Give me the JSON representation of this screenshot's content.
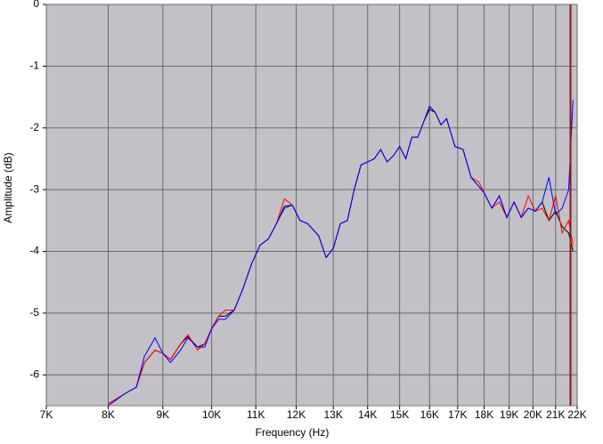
{
  "chart_data": {
    "type": "line",
    "x_label": "Frequency (Hz)",
    "y_label": "Amplitude (dB)",
    "log_x": true,
    "grid": true,
    "xlim": [
      7000,
      22000
    ],
    "xticks": [
      {
        "value": 7000,
        "label": "7K"
      },
      {
        "value": 8000,
        "label": "8K"
      },
      {
        "value": 9000,
        "label": "9K"
      },
      {
        "value": 10000,
        "label": "10K"
      },
      {
        "value": 11000,
        "label": "11K"
      },
      {
        "value": 12000,
        "label": "12K"
      },
      {
        "value": 13000,
        "label": "13K"
      },
      {
        "value": 14000,
        "label": "14K"
      },
      {
        "value": 15000,
        "label": "15K"
      },
      {
        "value": 16000,
        "label": "16K"
      },
      {
        "value": 17000,
        "label": "17K"
      },
      {
        "value": 18000,
        "label": "18K"
      },
      {
        "value": 19000,
        "label": "19K"
      },
      {
        "value": 20000,
        "label": "20K"
      },
      {
        "value": 21000,
        "label": "21K"
      },
      {
        "value": 22000,
        "label": "22K"
      }
    ],
    "ylim": [
      -6.5,
      0
    ],
    "yticks": [
      0,
      -1,
      -2,
      -3,
      -4,
      -5,
      -6
    ],
    "x": [
      8000,
      8300,
      8500,
      8650,
      8850,
      9000,
      9150,
      9350,
      9500,
      9700,
      9850,
      10000,
      10150,
      10300,
      10500,
      10700,
      10900,
      11100,
      11300,
      11500,
      11700,
      11900,
      12100,
      12300,
      12600,
      12800,
      13000,
      13200,
      13400,
      13600,
      13800,
      14000,
      14200,
      14400,
      14600,
      14800,
      15000,
      15200,
      15400,
      15600,
      15800,
      16000,
      16200,
      16400,
      16600,
      16900,
      17200,
      17500,
      17800,
      18000,
      18300,
      18600,
      18900,
      19200,
      19500,
      19800,
      20100,
      20400,
      20700,
      21000,
      21300,
      21600,
      21800
    ],
    "series": [
      {
        "color": "#000000",
        "values": [
          -6.47,
          -6.3,
          -6.2,
          -5.8,
          -5.6,
          -5.65,
          -5.75,
          -5.5,
          -5.38,
          -5.55,
          -5.5,
          -5.25,
          -5.05,
          -5.05,
          -4.95,
          -4.6,
          -4.2,
          -3.9,
          -3.8,
          -3.55,
          -3.27,
          -3.25,
          -3.5,
          -3.55,
          -3.75,
          -4.1,
          -3.95,
          -3.55,
          -3.5,
          -3.0,
          -2.6,
          -2.55,
          -2.5,
          -2.35,
          -2.55,
          -2.45,
          -2.3,
          -2.5,
          -2.15,
          -2.15,
          -1.9,
          -1.7,
          -1.75,
          -1.95,
          -1.85,
          -2.3,
          -2.35,
          -2.8,
          -2.95,
          -3.05,
          -3.3,
          -3.1,
          -3.45,
          -3.2,
          -3.45,
          -3.3,
          -3.35,
          -3.2,
          -3.5,
          -3.35,
          -3.6,
          -3.7,
          -4.0
        ]
      },
      {
        "color": "#ff0000",
        "values": [
          -6.47,
          -6.3,
          -6.2,
          -5.8,
          -5.6,
          -5.65,
          -5.75,
          -5.5,
          -5.35,
          -5.6,
          -5.5,
          -5.25,
          -5.05,
          -4.95,
          -4.95,
          -4.6,
          -4.2,
          -3.9,
          -3.8,
          -3.55,
          -3.15,
          -3.25,
          -3.5,
          -3.55,
          -3.75,
          -4.1,
          -3.95,
          -3.55,
          -3.5,
          -3.0,
          -2.6,
          -2.55,
          -2.5,
          -2.35,
          -2.55,
          -2.45,
          -2.3,
          -2.5,
          -2.15,
          -2.15,
          -1.9,
          -1.65,
          -1.75,
          -1.95,
          -1.85,
          -2.3,
          -2.35,
          -2.8,
          -2.88,
          -3.05,
          -3.3,
          -3.2,
          -3.45,
          -3.2,
          -3.45,
          -3.1,
          -3.35,
          -3.3,
          -3.5,
          -3.1,
          -3.7,
          -3.5,
          -3.9
        ]
      },
      {
        "color": "#0000ff",
        "values": [
          -6.5,
          -6.3,
          -6.2,
          -5.7,
          -5.4,
          -5.65,
          -5.8,
          -5.6,
          -5.4,
          -5.55,
          -5.55,
          -5.25,
          -5.1,
          -5.1,
          -4.95,
          -4.6,
          -4.2,
          -3.9,
          -3.8,
          -3.55,
          -3.3,
          -3.25,
          -3.5,
          -3.55,
          -3.75,
          -4.1,
          -3.95,
          -3.55,
          -3.5,
          -3.0,
          -2.6,
          -2.55,
          -2.5,
          -2.35,
          -2.55,
          -2.45,
          -2.3,
          -2.5,
          -2.15,
          -2.15,
          -1.9,
          -1.65,
          -1.75,
          -1.95,
          -1.85,
          -2.3,
          -2.35,
          -2.8,
          -2.95,
          -3.05,
          -3.3,
          -3.1,
          -3.45,
          -3.2,
          -3.45,
          -3.3,
          -3.35,
          -3.2,
          -2.8,
          -3.4,
          -3.3,
          -3.0,
          -1.55
        ]
      }
    ]
  }
}
